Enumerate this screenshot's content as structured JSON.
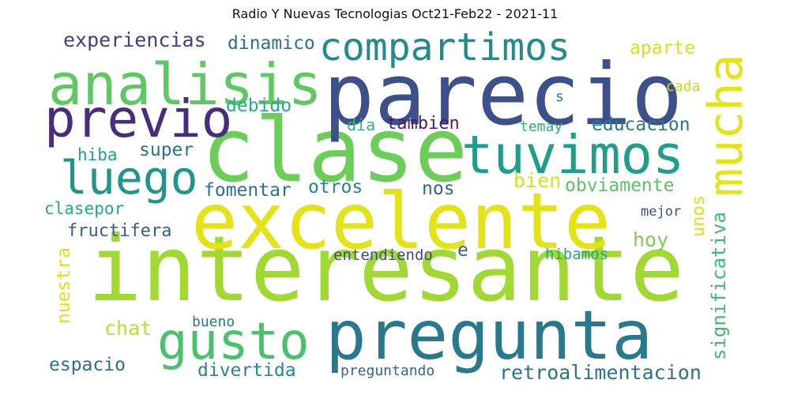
{
  "title": "Radio Y Nuevas Tecnologias Oct21-Feb22 - 2021-11",
  "words": [
    {
      "text": "interesante",
      "color": "#a2d832"
    },
    {
      "text": "excelente",
      "color": "#e2e418"
    },
    {
      "text": "clase",
      "color": "#6cce59"
    },
    {
      "text": "parecio",
      "color": "#3e5089"
    },
    {
      "text": "pregunta",
      "color": "#2a788e"
    },
    {
      "text": "analisis",
      "color": "#5ec962"
    },
    {
      "text": "tuvimos",
      "color": "#1f9e89"
    },
    {
      "text": "previo",
      "color": "#472d7b"
    },
    {
      "text": "compartimos",
      "color": "#228b8d"
    },
    {
      "text": "gusto",
      "color": "#4ac16d"
    },
    {
      "text": "luego",
      "color": "#1f968b"
    },
    {
      "text": "mucha",
      "color": "#e5e419"
    },
    {
      "text": "experiencias",
      "color": "#423f85"
    },
    {
      "text": "dinamico",
      "color": "#2c728e"
    },
    {
      "text": "aparte",
      "color": "#d8e219"
    },
    {
      "text": "cada",
      "color": "#c0df25"
    },
    {
      "text": "debido",
      "color": "#26ad81"
    },
    {
      "text": "dia",
      "color": "#34b679"
    },
    {
      "text": "tambien",
      "color": "#481b6d"
    },
    {
      "text": "temay",
      "color": "#2ab07f"
    },
    {
      "text": "educacion",
      "color": "#2a788e"
    },
    {
      "text": "s",
      "color": "#2a788e"
    },
    {
      "text": "hiba",
      "color": "#20a486"
    },
    {
      "text": "super",
      "color": "#2c728e"
    },
    {
      "text": "bien",
      "color": "#d5e21a"
    },
    {
      "text": "obviamente",
      "color": "#56c667"
    },
    {
      "text": "fomentar",
      "color": "#2c728e"
    },
    {
      "text": "otros",
      "color": "#25858e"
    },
    {
      "text": "nos",
      "color": "#31668e"
    },
    {
      "text": "clasepor",
      "color": "#25ab82"
    },
    {
      "text": "fructifera",
      "color": "#355f8d"
    },
    {
      "text": "hoy",
      "color": "#7ad151"
    },
    {
      "text": "unos",
      "color": "#d8e219"
    },
    {
      "text": "mejor",
      "color": "#3b528b"
    },
    {
      "text": "significativa",
      "color": "#3dbc74"
    },
    {
      "text": "entendiendo",
      "color": "#3e4a89"
    },
    {
      "text": "e",
      "color": "#355f8d"
    },
    {
      "text": "hibamos",
      "color": "#20a386"
    },
    {
      "text": "nuestra",
      "color": "#dde318"
    },
    {
      "text": "chat",
      "color": "#bddf26"
    },
    {
      "text": "bueno",
      "color": "#2a788e"
    },
    {
      "text": "espacio",
      "color": "#2e6e8e"
    },
    {
      "text": "divertida",
      "color": "#23898e"
    },
    {
      "text": "preguntando",
      "color": "#31668e"
    },
    {
      "text": "retroalimentacion",
      "color": "#2c728e"
    }
  ]
}
